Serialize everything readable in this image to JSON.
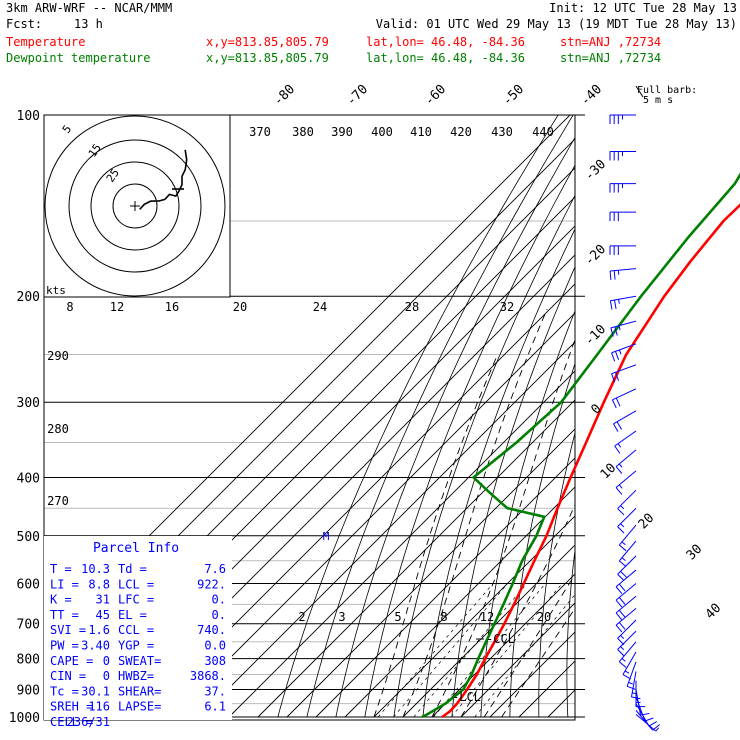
{
  "header": {
    "model": "3km ARW-WRF -- NCAR/MMM",
    "init": "Init: 12 UTC Tue 28 May 13",
    "fcst_label": "Fcst:",
    "fcst_value": "13 h",
    "valid": "Valid: 01 UTC Wed 29 May 13 (19 MDT Tue 28 May 13)",
    "temp_label": "Temperature",
    "dew_label": "Dewpoint temperature",
    "xy": "x,y=813.85,805.79",
    "latlon": "lat,lon= 46.48, -84.36",
    "stn": "stn=ANJ ,72734",
    "temp_color": "#ff0000",
    "dew_color": "#008000"
  },
  "barb_key": {
    "line1": "Full barb:",
    "line2": "5 m s"
  },
  "hodograph": {
    "unit": "kts",
    "rings": [
      "5",
      "15",
      "25"
    ]
  },
  "parcel": {
    "title": "Parcel Info",
    "rows": [
      [
        "T  =",
        "10.3",
        "Td =",
        "7.6"
      ],
      [
        "LI =",
        "8.8",
        "LCL =",
        "922."
      ],
      [
        "K  =",
        "31",
        "LFC =",
        "0."
      ],
      [
        "TT =",
        "45",
        "EL  =",
        "0."
      ],
      [
        "SVI =",
        "1.6",
        "CCL =",
        "740."
      ],
      [
        "PW =",
        "3.40",
        "YGP =",
        "0.0"
      ],
      [
        "CAPE =",
        "0",
        "SWEAT=",
        "308"
      ],
      [
        "CIN =",
        "0",
        "HWBZ=",
        "3868."
      ],
      [
        "Tc =",
        "30.1",
        "SHEAR=",
        "37."
      ],
      [
        "SREH =",
        "116",
        "LAPSE=",
        "6.1"
      ],
      [
        "CELL =",
        "236/31",
        "",
        ""
      ]
    ]
  },
  "chart_data": {
    "type": "line",
    "title": "",
    "xlabel": "",
    "ylabel": "",
    "pressure_ticks": [
      100,
      200,
      300,
      400,
      500,
      600,
      700,
      800,
      900,
      1000
    ],
    "temp_ticks": [
      -80,
      -70,
      -60,
      -50,
      -40,
      -30,
      -20,
      -10,
      0,
      10,
      20,
      30,
      40
    ],
    "theta_labels": [
      370,
      380,
      390,
      400,
      410,
      420,
      430,
      440
    ],
    "theta_low_labels": [
      290,
      280,
      270
    ],
    "mixing_labels_200": [
      8,
      12,
      16,
      20,
      24,
      28,
      32
    ],
    "mixing_labels_700": [
      2,
      3,
      5,
      8,
      12,
      20
    ],
    "markers": [
      "M",
      "-CCL",
      "-LCL"
    ],
    "series": [
      {
        "name": "Temperature",
        "color": "#ff0000",
        "points": [
          [
            1000,
            13.5
          ],
          [
            980,
            14.2
          ],
          [
            950,
            14.0
          ],
          [
            900,
            12.6
          ],
          [
            850,
            10.8
          ],
          [
            800,
            8.2
          ],
          [
            750,
            5.6
          ],
          [
            700,
            2.8
          ],
          [
            650,
            -0.6
          ],
          [
            600,
            -4.4
          ],
          [
            550,
            -8.6
          ],
          [
            500,
            -13.0
          ],
          [
            450,
            -18.7
          ],
          [
            400,
            -24.8
          ],
          [
            350,
            -31.5
          ],
          [
            300,
            -39.3
          ],
          [
            250,
            -48.0
          ],
          [
            200,
            -55.0
          ],
          [
            175,
            -58.0
          ],
          [
            150,
            -60.5
          ],
          [
            125,
            -60.0
          ],
          [
            100,
            -62.2
          ]
        ]
      },
      {
        "name": "Dewpoint temperature",
        "color": "#008000",
        "points": [
          [
            1000,
            6.5
          ],
          [
            990,
            7.4
          ],
          [
            950,
            10.0
          ],
          [
            900,
            11.3
          ],
          [
            850,
            9.0
          ],
          [
            800,
            5.8
          ],
          [
            750,
            2.7
          ],
          [
            700,
            -0.6
          ],
          [
            650,
            -4.2
          ],
          [
            600,
            -8.2
          ],
          [
            550,
            -12.8
          ],
          [
            500,
            -16.5
          ],
          [
            465,
            -20.3
          ],
          [
            450,
            -36.0
          ],
          [
            425,
            -47.0
          ],
          [
            400,
            -58.3
          ],
          [
            350,
            -55.5
          ],
          [
            300,
            -54.0
          ],
          [
            250,
            -58.0
          ],
          [
            200,
            -63.0
          ],
          [
            160,
            -67.0
          ],
          [
            130,
            -69.5
          ],
          [
            100,
            -79.0
          ]
        ]
      }
    ],
    "wind_barbs": [
      {
        "p": 100,
        "dir": 270,
        "spd": 35
      },
      {
        "p": 115,
        "dir": 270,
        "spd": 35
      },
      {
        "p": 130,
        "dir": 270,
        "spd": 35
      },
      {
        "p": 145,
        "dir": 270,
        "spd": 30
      },
      {
        "p": 165,
        "dir": 270,
        "spd": 30
      },
      {
        "p": 180,
        "dir": 265,
        "spd": 25
      },
      {
        "p": 200,
        "dir": 260,
        "spd": 25
      },
      {
        "p": 220,
        "dir": 255,
        "spd": 25
      },
      {
        "p": 240,
        "dir": 250,
        "spd": 25
      },
      {
        "p": 260,
        "dir": 250,
        "spd": 20
      },
      {
        "p": 285,
        "dir": 245,
        "spd": 20
      },
      {
        "p": 310,
        "dir": 240,
        "spd": 20
      },
      {
        "p": 335,
        "dir": 235,
        "spd": 15
      },
      {
        "p": 360,
        "dir": 230,
        "spd": 15
      },
      {
        "p": 390,
        "dir": 230,
        "spd": 15
      },
      {
        "p": 420,
        "dir": 225,
        "spd": 15
      },
      {
        "p": 450,
        "dir": 225,
        "spd": 15
      },
      {
        "p": 480,
        "dir": 220,
        "spd": 15
      },
      {
        "p": 510,
        "dir": 220,
        "spd": 15
      },
      {
        "p": 540,
        "dir": 225,
        "spd": 20
      },
      {
        "p": 570,
        "dir": 230,
        "spd": 20
      },
      {
        "p": 600,
        "dir": 230,
        "spd": 20
      },
      {
        "p": 630,
        "dir": 230,
        "spd": 20
      },
      {
        "p": 660,
        "dir": 230,
        "spd": 20
      },
      {
        "p": 690,
        "dir": 225,
        "spd": 15
      },
      {
        "p": 720,
        "dir": 225,
        "spd": 15
      },
      {
        "p": 750,
        "dir": 220,
        "spd": 15
      },
      {
        "p": 780,
        "dir": 210,
        "spd": 15
      },
      {
        "p": 810,
        "dir": 200,
        "spd": 15
      },
      {
        "p": 840,
        "dir": 190,
        "spd": 15
      },
      {
        "p": 870,
        "dir": 180,
        "spd": 15
      },
      {
        "p": 900,
        "dir": 170,
        "spd": 10
      },
      {
        "p": 925,
        "dir": 160,
        "spd": 10
      },
      {
        "p": 950,
        "dir": 150,
        "spd": 10
      },
      {
        "p": 975,
        "dir": 140,
        "spd": 10
      },
      {
        "p": 990,
        "dir": 130,
        "spd": 5
      }
    ],
    "hodo_trace_kts": [
      [
        3,
        -2
      ],
      [
        6,
        1
      ],
      [
        10,
        3
      ],
      [
        15,
        3
      ],
      [
        19,
        4
      ],
      [
        22,
        7
      ],
      [
        26,
        6
      ],
      [
        28,
        9
      ],
      [
        30,
        13
      ],
      [
        30,
        18
      ],
      [
        32,
        22
      ],
      [
        33,
        28
      ],
      [
        32,
        34
      ]
    ],
    "grid": true
  }
}
